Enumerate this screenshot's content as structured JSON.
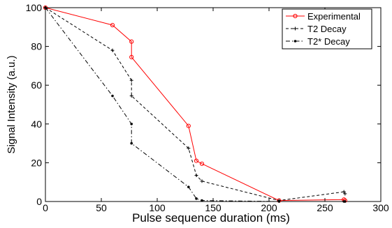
{
  "chart_data": {
    "type": "line",
    "xlabel": "Pulse sequence duration (ms)",
    "ylabel": "Signal Intensity (a.u.)",
    "xlim": [
      0,
      300
    ],
    "ylim": [
      0,
      100
    ],
    "xticks": [
      0,
      50,
      100,
      150,
      200,
      250,
      300
    ],
    "yticks": [
      0,
      20,
      40,
      60,
      80,
      100
    ],
    "grid": false,
    "legend_position": "top-right",
    "series": [
      {
        "name": "Experimental",
        "color": "#ff0000",
        "line_style": "solid",
        "marker": "circle",
        "x": [
          0,
          60,
          77,
          77,
          128,
          135,
          140,
          209,
          267,
          268
        ],
        "y": [
          100,
          91,
          82.5,
          74.5,
          39,
          21,
          19.5,
          0.5,
          1,
          0.5
        ]
      },
      {
        "name": "T2 Decay",
        "color": "#000000",
        "line_style": "dashed",
        "marker": "plus",
        "x": [
          0,
          60,
          77,
          77,
          128,
          135,
          140,
          209,
          267,
          268
        ],
        "y": [
          100,
          78,
          62.5,
          54.5,
          27.5,
          13.5,
          10.5,
          0.5,
          5,
          4
        ]
      },
      {
        "name": "T2* Decay",
        "color": "#000000",
        "line_style": "dashdot",
        "marker": "dot",
        "x": [
          0,
          60,
          77,
          77,
          128,
          135,
          140,
          209,
          267,
          268
        ],
        "y": [
          100,
          54.5,
          40,
          30,
          7.5,
          1.5,
          0.5,
          0,
          0,
          0
        ]
      }
    ]
  }
}
